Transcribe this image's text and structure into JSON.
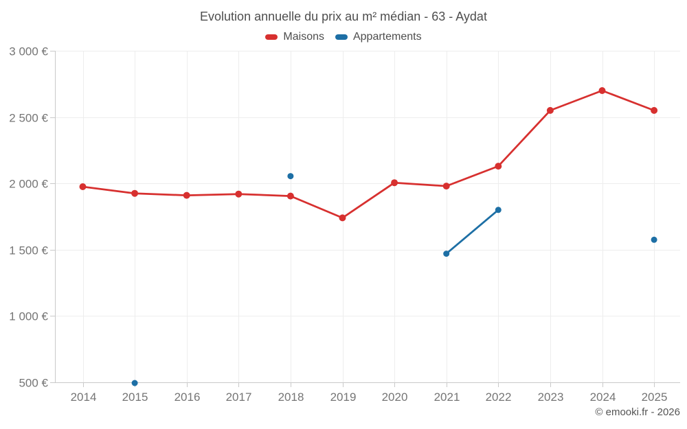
{
  "title": "Evolution annuelle du prix au m² médian - 63 - Aydat",
  "footer": {
    "text": "© emooki.fr - 2026"
  },
  "chart_data": {
    "type": "line",
    "title": "Evolution annuelle du prix au m² médian - 63 - Aydat",
    "categories": [
      "2014",
      "2015",
      "2016",
      "2017",
      "2018",
      "2019",
      "2020",
      "2021",
      "2022",
      "2023",
      "2024",
      "2025"
    ],
    "series": [
      {
        "name": "Maisons",
        "color": "#d7302f",
        "values": [
          1975,
          1925,
          1910,
          1920,
          1905,
          1740,
          2005,
          1980,
          2130,
          2550,
          2700,
          2550
        ]
      },
      {
        "name": "Appartements",
        "color": "#1d6fa5",
        "values": [
          null,
          495,
          null,
          null,
          2055,
          null,
          null,
          1470,
          1800,
          null,
          null,
          1575
        ]
      }
    ],
    "xlabel": "",
    "ylabel": "",
    "ylim": [
      500,
      3000
    ],
    "yticks": [
      500,
      1000,
      1500,
      2000,
      2500,
      3000
    ],
    "ytick_labels": [
      "500 €",
      "1 000 €",
      "1 500 €",
      "2 000 €",
      "2 500 €",
      "3 000 €"
    ],
    "grid": true,
    "legend_position": "top",
    "currency": "€"
  }
}
